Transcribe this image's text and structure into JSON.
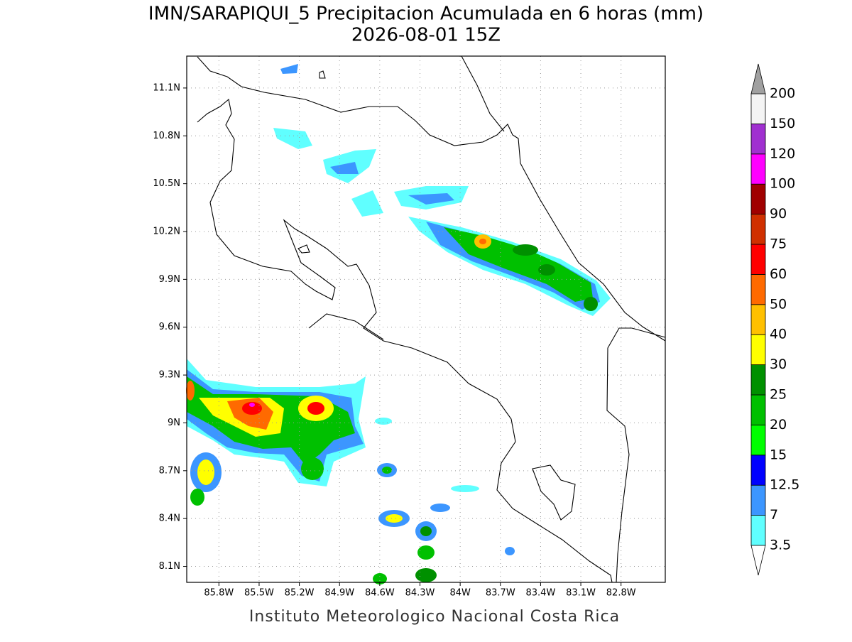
{
  "map": {
    "title": "IMN/SARAPIQUI_5 Precipitacion Acumulada en 6 horas (mm)",
    "subtitle": "2026-08-01 15Z",
    "footer": "Instituto Meteorologico Nacional Costa Rica",
    "latlim": [
      8.0,
      11.3
    ],
    "lonlim": [
      -86.04,
      -82.47
    ],
    "lat_ticks": [
      {
        "value": 11.1,
        "label": "11.1N"
      },
      {
        "value": 10.8,
        "label": "10.8N"
      },
      {
        "value": 10.5,
        "label": "10.5N"
      },
      {
        "value": 10.2,
        "label": "10.2N"
      },
      {
        "value": 9.9,
        "label": "9.9N"
      },
      {
        "value": 9.6,
        "label": "9.6N"
      },
      {
        "value": 9.3,
        "label": "9.3N"
      },
      {
        "value": 9.0,
        "label": "9N"
      },
      {
        "value": 8.7,
        "label": "8.7N"
      },
      {
        "value": 8.4,
        "label": "8.4N"
      },
      {
        "value": 8.1,
        "label": "8.1N"
      }
    ],
    "lon_ticks": [
      {
        "value": -85.8,
        "label": "85.8W"
      },
      {
        "value": -85.5,
        "label": "85.5W"
      },
      {
        "value": -85.2,
        "label": "85.2W"
      },
      {
        "value": -84.9,
        "label": "84.9W"
      },
      {
        "value": -84.6,
        "label": "84.6W"
      },
      {
        "value": -84.3,
        "label": "84.3W"
      },
      {
        "value": -84.0,
        "label": "84W"
      },
      {
        "value": -83.7,
        "label": "83.7W"
      },
      {
        "value": -83.4,
        "label": "83.4W"
      },
      {
        "value": -83.1,
        "label": "83.1W"
      },
      {
        "value": -82.8,
        "label": "82.8W"
      }
    ],
    "legend": {
      "levels": [
        3.5,
        7,
        12.5,
        15,
        20,
        25,
        30,
        40,
        50,
        60,
        75,
        90,
        100,
        120,
        150,
        200
      ],
      "colors": [
        "#60ffff",
        "#3c96ff",
        "#0000ff",
        "#00ff00",
        "#00c000",
        "#009000",
        "#ffff00",
        "#ffc000",
        "#ff6a00",
        "#ff0000",
        "#d03000",
        "#a00000",
        "#ff00ff",
        "#a030d0",
        "#f4f4f4"
      ],
      "under_color": "#ffffff",
      "over_color": "#a0a0a0"
    }
  }
}
